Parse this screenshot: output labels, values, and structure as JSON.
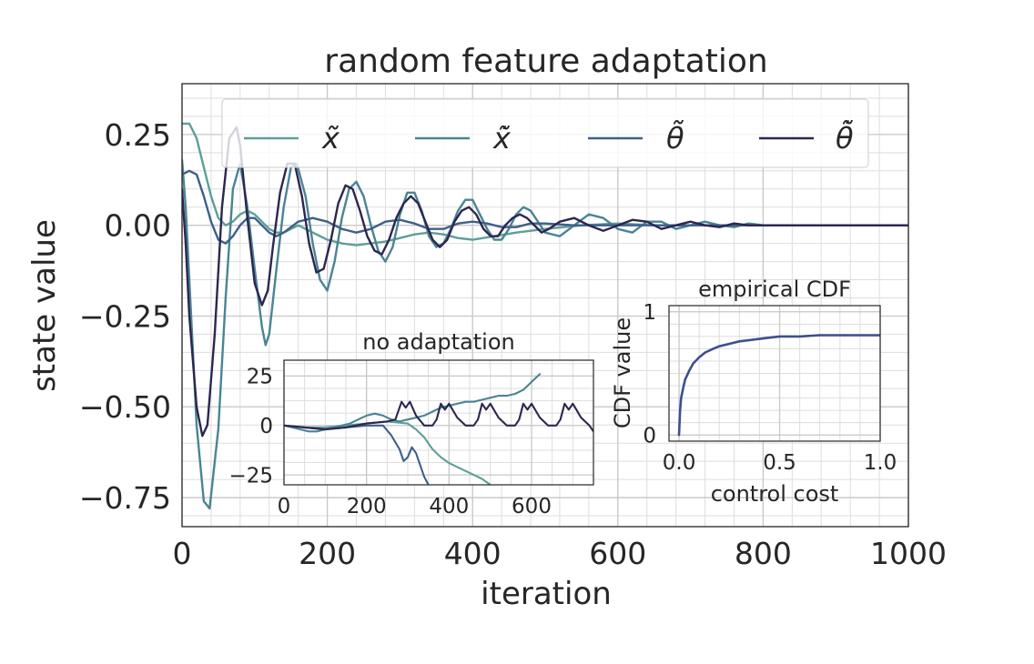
{
  "chart_data": [
    {
      "type": "line",
      "title": "random feature adaptation",
      "xlabel": "iteration",
      "ylabel": "state value",
      "xlim": [
        0,
        1000
      ],
      "ylim": [
        -0.83,
        0.39
      ],
      "x_ticks": [
        0,
        200,
        400,
        600,
        800,
        1000
      ],
      "x_tick_labels": [
        "0",
        "200",
        "400",
        "600",
        "800",
        "1000"
      ],
      "y_ticks": [
        0.25,
        0.0,
        -0.25,
        -0.5,
        -0.75
      ],
      "y_tick_labels": [
        "0.25",
        "0.00",
        "−0.25",
        "−0.50",
        "−0.75"
      ],
      "grid": true,
      "legend_position": "top",
      "series": [
        {
          "name": "x̃",
          "color": "#5f9e98",
          "x": [
            0,
            10,
            20,
            30,
            40,
            50,
            60,
            70,
            80,
            90,
            100,
            110,
            120,
            130,
            140,
            150,
            160,
            180,
            200,
            220,
            240,
            260,
            280,
            300,
            320,
            340,
            360,
            380,
            400,
            430,
            460,
            500,
            550,
            600,
            650,
            700,
            800,
            900,
            1000
          ],
          "y": [
            0.28,
            0.28,
            0.24,
            0.16,
            0.08,
            0.02,
            0.0,
            0.01,
            0.03,
            0.04,
            0.03,
            0.01,
            -0.01,
            -0.02,
            -0.02,
            -0.01,
            0.0,
            -0.02,
            -0.04,
            -0.05,
            -0.055,
            -0.05,
            -0.045,
            -0.035,
            -0.025,
            -0.02,
            -0.025,
            -0.035,
            -0.04,
            -0.03,
            -0.02,
            -0.01,
            0.0,
            0.005,
            0.0,
            0.0,
            0.0,
            0.0,
            0.0
          ]
        },
        {
          "name": "x̃̇",
          "color": "#4a8494",
          "x": [
            0,
            5,
            10,
            20,
            30,
            38,
            50,
            60,
            70,
            80,
            90,
            100,
            110,
            115,
            120,
            130,
            140,
            150,
            158,
            170,
            180,
            190,
            200,
            210,
            220,
            230,
            240,
            250,
            260,
            270,
            280,
            290,
            300,
            310,
            320,
            330,
            340,
            350,
            360,
            370,
            380,
            390,
            400,
            410,
            420,
            430,
            440,
            450,
            460,
            470,
            480,
            490,
            500,
            520,
            540,
            560,
            580,
            600,
            620,
            640,
            660,
            680,
            700,
            720,
            740,
            760,
            780,
            800,
            850,
            900,
            950,
            1000
          ],
          "y": [
            0.18,
            0.05,
            -0.15,
            -0.55,
            -0.76,
            -0.78,
            -0.56,
            -0.2,
            0.1,
            0.17,
            0.05,
            -0.12,
            -0.28,
            -0.33,
            -0.3,
            -0.12,
            0.05,
            0.16,
            0.17,
            0.08,
            -0.05,
            -0.15,
            -0.18,
            -0.1,
            0.02,
            0.1,
            0.12,
            0.08,
            0.0,
            -0.07,
            -0.1,
            -0.06,
            0.03,
            0.09,
            0.09,
            0.04,
            -0.03,
            -0.06,
            -0.05,
            -0.01,
            0.04,
            0.07,
            0.07,
            0.03,
            -0.01,
            -0.04,
            -0.04,
            -0.01,
            0.03,
            0.05,
            0.04,
            0.01,
            -0.02,
            -0.03,
            0.0,
            0.03,
            0.02,
            -0.01,
            -0.02,
            0.01,
            0.01,
            -0.01,
            0.0,
            0.01,
            0.0,
            -0.005,
            0.005,
            0.0,
            0.0,
            0.0,
            0.0,
            0.0
          ]
        },
        {
          "name": "θ̃",
          "color": "#3e5f8a",
          "x": [
            0,
            10,
            20,
            30,
            40,
            50,
            60,
            70,
            80,
            90,
            100,
            110,
            120,
            130,
            140,
            160,
            180,
            200,
            220,
            240,
            260,
            280,
            300,
            320,
            340,
            360,
            380,
            400,
            420,
            440,
            460,
            480,
            500,
            540,
            580,
            620,
            660,
            700,
            750,
            800,
            900,
            1000
          ],
          "y": [
            0.14,
            0.15,
            0.14,
            0.08,
            0.01,
            -0.04,
            -0.05,
            -0.03,
            0.0,
            0.02,
            0.02,
            0.0,
            -0.02,
            -0.03,
            -0.02,
            0.01,
            0.02,
            0.01,
            -0.01,
            -0.02,
            -0.01,
            0.01,
            0.015,
            0.005,
            -0.01,
            -0.01,
            0.005,
            0.01,
            0.005,
            -0.005,
            -0.005,
            0.005,
            0.005,
            0.0,
            0.0,
            0.0,
            0.0,
            0.0,
            0.0,
            0.0,
            0.0,
            0.0
          ]
        },
        {
          "name": "θ̃̇",
          "color": "#2c2650",
          "x": [
            0,
            5,
            10,
            20,
            28,
            35,
            45,
            55,
            65,
            75,
            80,
            90,
            100,
            110,
            118,
            125,
            135,
            145,
            155,
            165,
            175,
            185,
            195,
            205,
            215,
            225,
            235,
            245,
            255,
            265,
            275,
            285,
            295,
            305,
            315,
            325,
            335,
            345,
            355,
            365,
            375,
            385,
            395,
            405,
            415,
            425,
            435,
            445,
            455,
            465,
            475,
            485,
            495,
            505,
            520,
            540,
            560,
            580,
            600,
            620,
            640,
            660,
            680,
            700,
            720,
            740,
            760,
            780,
            800,
            850,
            900,
            950,
            1000
          ],
          "y": [
            0.1,
            -0.05,
            -0.25,
            -0.5,
            -0.58,
            -0.55,
            -0.3,
            0.05,
            0.24,
            0.27,
            0.22,
            0.02,
            -0.16,
            -0.22,
            -0.18,
            -0.06,
            0.09,
            0.17,
            0.17,
            0.08,
            -0.05,
            -0.13,
            -0.12,
            -0.04,
            0.06,
            0.11,
            0.1,
            0.04,
            -0.03,
            -0.07,
            -0.08,
            -0.04,
            0.02,
            0.06,
            0.08,
            0.06,
            0.01,
            -0.04,
            -0.06,
            -0.04,
            0.01,
            0.04,
            0.05,
            0.03,
            -0.01,
            -0.03,
            -0.03,
            0.0,
            0.02,
            0.03,
            0.02,
            0.0,
            -0.02,
            -0.01,
            0.01,
            0.02,
            0.0,
            -0.015,
            0.0,
            0.015,
            0.01,
            -0.01,
            0.0,
            0.01,
            0.0,
            -0.005,
            0.005,
            0.0,
            0.0,
            0.0,
            0.0,
            0.0,
            0.0
          ]
        }
      ]
    },
    {
      "type": "line",
      "title": "no adaptation",
      "xlabel": "",
      "ylabel": "",
      "xlim": [
        0,
        750
      ],
      "ylim": [
        -30,
        33
      ],
      "x_ticks": [
        0,
        200,
        400,
        600
      ],
      "x_tick_labels": [
        "0",
        "200",
        "400",
        "600"
      ],
      "y_ticks": [
        25,
        0,
        -25
      ],
      "y_tick_labels": [
        "25",
        "0",
        "−25"
      ],
      "grid": true,
      "series": [
        {
          "color": "#5f9e98",
          "x": [
            0,
            50,
            100,
            150,
            200,
            250,
            300,
            320,
            340,
            360,
            380,
            400,
            420,
            440,
            460,
            480,
            500
          ],
          "y": [
            0,
            -1,
            -1,
            0,
            1,
            2,
            1,
            -2,
            -6,
            -12,
            -16,
            -19,
            -21,
            -23,
            -25,
            -27,
            -30
          ]
        },
        {
          "color": "#4a8494",
          "x": [
            0,
            20,
            40,
            60,
            80,
            100,
            120,
            140,
            160,
            180,
            200,
            220,
            240,
            260,
            280,
            300,
            320,
            340,
            360,
            380,
            400,
            420,
            440,
            460,
            480,
            500,
            520,
            540,
            560,
            580,
            600,
            620
          ],
          "y": [
            0,
            -1,
            -2,
            -3,
            -3,
            -2,
            -1,
            0,
            1,
            3,
            5,
            6,
            5,
            3,
            2,
            3,
            4,
            5,
            7,
            9,
            10,
            11,
            12,
            12,
            13,
            14,
            15,
            15,
            16,
            18,
            22,
            26
          ]
        },
        {
          "color": "#3e5f8a",
          "x": [
            0,
            50,
            100,
            150,
            200,
            240,
            260,
            280,
            290,
            300,
            310,
            320,
            330,
            340,
            350,
            360,
            370,
            380,
            390,
            400
          ],
          "y": [
            0,
            -1,
            -2,
            -1,
            0,
            0,
            -5,
            -12,
            -18,
            -16,
            -11,
            -14,
            -20,
            -26,
            -30,
            -33,
            -35,
            -38,
            -40,
            -42
          ]
        },
        {
          "color": "#2c2650",
          "x": [
            0,
            50,
            100,
            150,
            200,
            250,
            270,
            285,
            295,
            305,
            320,
            340,
            360,
            370,
            380,
            390,
            400,
            420,
            440,
            460,
            470,
            480,
            490,
            500,
            520,
            540,
            560,
            570,
            580,
            590,
            600,
            620,
            640,
            660,
            670,
            680,
            690,
            700,
            720,
            740,
            750
          ],
          "y": [
            0,
            -1,
            -2,
            -1,
            1,
            2,
            3,
            12,
            9,
            12,
            5,
            0,
            0,
            3,
            11,
            8,
            11,
            4,
            0,
            0,
            3,
            11,
            8,
            11,
            4,
            0,
            0,
            3,
            11,
            8,
            11,
            4,
            0,
            0,
            3,
            11,
            8,
            11,
            4,
            0,
            -3
          ]
        }
      ]
    },
    {
      "type": "line",
      "title": "empirical CDF",
      "xlabel": "control cost",
      "ylabel": "CDF value",
      "xlim": [
        -0.05,
        1.0
      ],
      "ylim": [
        -0.05,
        1.05
      ],
      "x_ticks": [
        0.0,
        0.5,
        1.0
      ],
      "x_tick_labels": [
        "0.0",
        "0.5",
        "1.0"
      ],
      "y_ticks": [
        0,
        1
      ],
      "y_tick_labels": [
        "0",
        "1"
      ],
      "grid": true,
      "series": [
        {
          "color": "#3e4f8e",
          "x": [
            0.0,
            0.005,
            0.01,
            0.02,
            0.03,
            0.05,
            0.07,
            0.1,
            0.13,
            0.17,
            0.2,
            0.25,
            0.3,
            0.35,
            0.4,
            0.45,
            0.5,
            0.6,
            0.7,
            0.8,
            0.9,
            1.0
          ],
          "y": [
            0.0,
            0.2,
            0.3,
            0.38,
            0.45,
            0.52,
            0.58,
            0.63,
            0.67,
            0.7,
            0.72,
            0.74,
            0.76,
            0.77,
            0.78,
            0.79,
            0.8,
            0.8,
            0.81,
            0.81,
            0.81,
            0.81
          ]
        }
      ]
    }
  ]
}
